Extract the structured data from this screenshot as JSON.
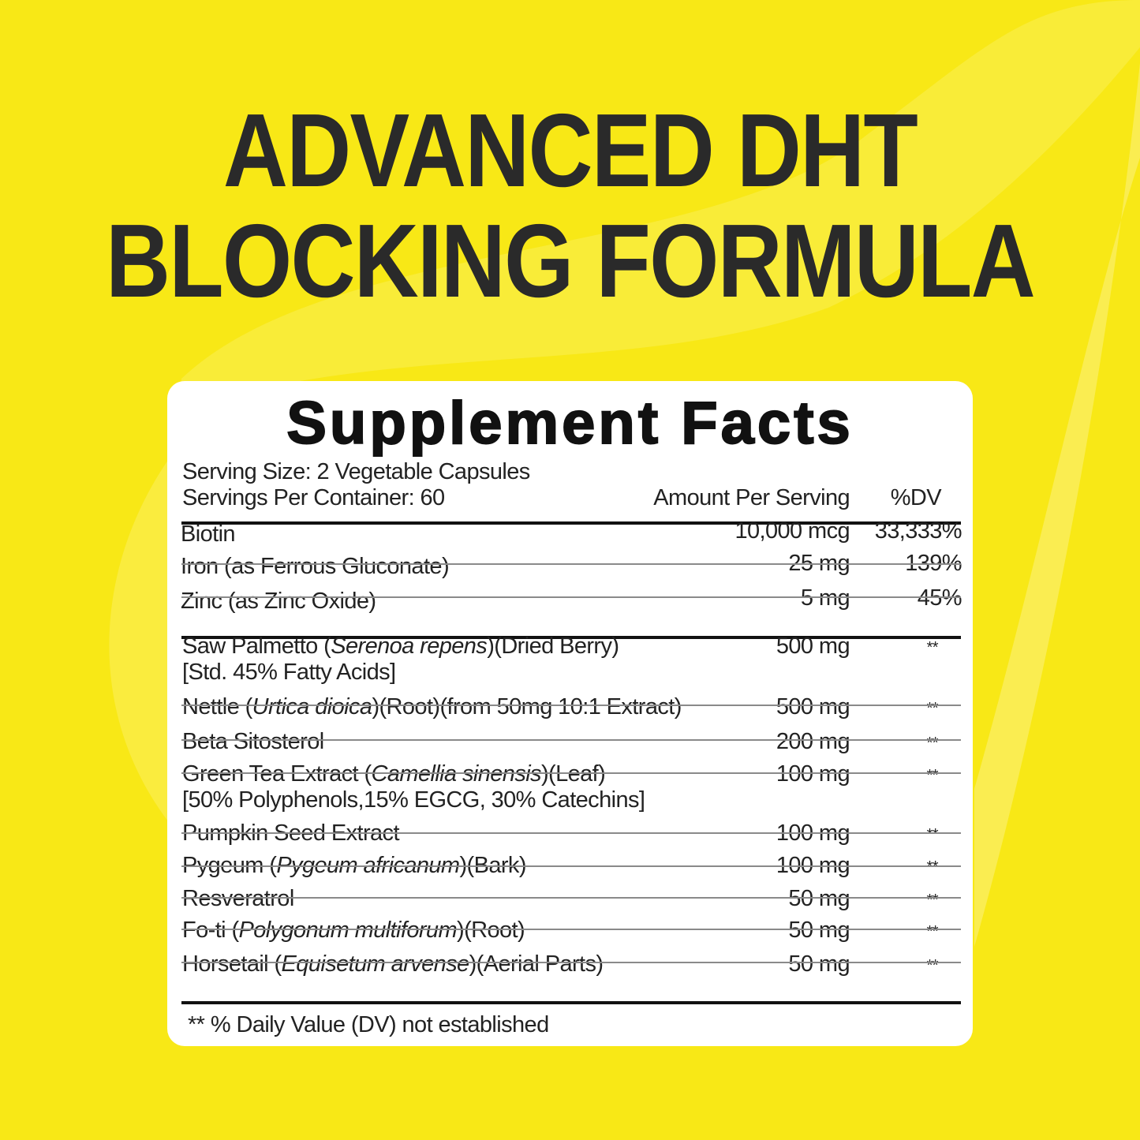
{
  "headline": {
    "line1": "ADVANCED DHT",
    "line2": "BLOCKING FORMULA"
  },
  "colors": {
    "background": "#f8e816",
    "headline": "#2a2a2a",
    "card": "#ffffff"
  },
  "facts": {
    "title": "Supplement Facts",
    "serving_size": "Serving Size: 2 Vegetable Capsules",
    "servings_per_container": "Servings Per Container: 60",
    "col_amount": "Amount Per Serving",
    "col_dv": "%DV",
    "vitamins": [
      {
        "name": "Biotin",
        "amount": "10,000 mcg",
        "dv": "33,333%"
      },
      {
        "name": "Iron (as Ferrous Gluconate)",
        "amount": "25 mg",
        "dv": "139%"
      },
      {
        "name": "Zinc (as Zinc Oxide)",
        "amount": "5 mg",
        "dv": "45%"
      }
    ],
    "blend": [
      {
        "pre": "Saw Palmetto (",
        "it": "Serenoa repens",
        "post": ")(Dried Berry)",
        "line2": "[Std. 45% Fatty Acids]",
        "amount": "500 mg",
        "dv": "**"
      },
      {
        "pre": "Nettle (",
        "it": "Urtica dioica",
        "post": ")(Root)(from 50mg 10:1 Extract)",
        "amount": "500 mg",
        "dv": "**"
      },
      {
        "pre": "Beta Sitosterol",
        "amount": "200 mg",
        "dv": "**"
      },
      {
        "pre": "Green Tea Extract (",
        "it": "Camellia sinensis",
        "post": ")(Leaf)",
        "line2": "[50% Polyphenols,15% EGCG, 30% Catechins]",
        "amount": "100 mg",
        "dv": "**"
      },
      {
        "pre": "Pumpkin Seed Extract",
        "amount": "100 mg",
        "dv": "**"
      },
      {
        "pre": "Pygeum (",
        "it": "Pygeum africanum",
        "post": ")(Bark)",
        "amount": "100 mg",
        "dv": "**"
      },
      {
        "pre": "Resveratrol",
        "amount": "50 mg",
        "dv": "**"
      },
      {
        "pre": "Fo-ti (",
        "it": "Polygonum multiforum",
        "post": ")(Root)",
        "amount": "50 mg",
        "dv": "**"
      },
      {
        "pre": "Horsetail (",
        "it": "Equisetum arvense",
        "post": ")(Aerial Parts)",
        "amount": "50 mg",
        "dv": "**"
      }
    ],
    "footnote": "** % Daily Value (DV) not established"
  }
}
